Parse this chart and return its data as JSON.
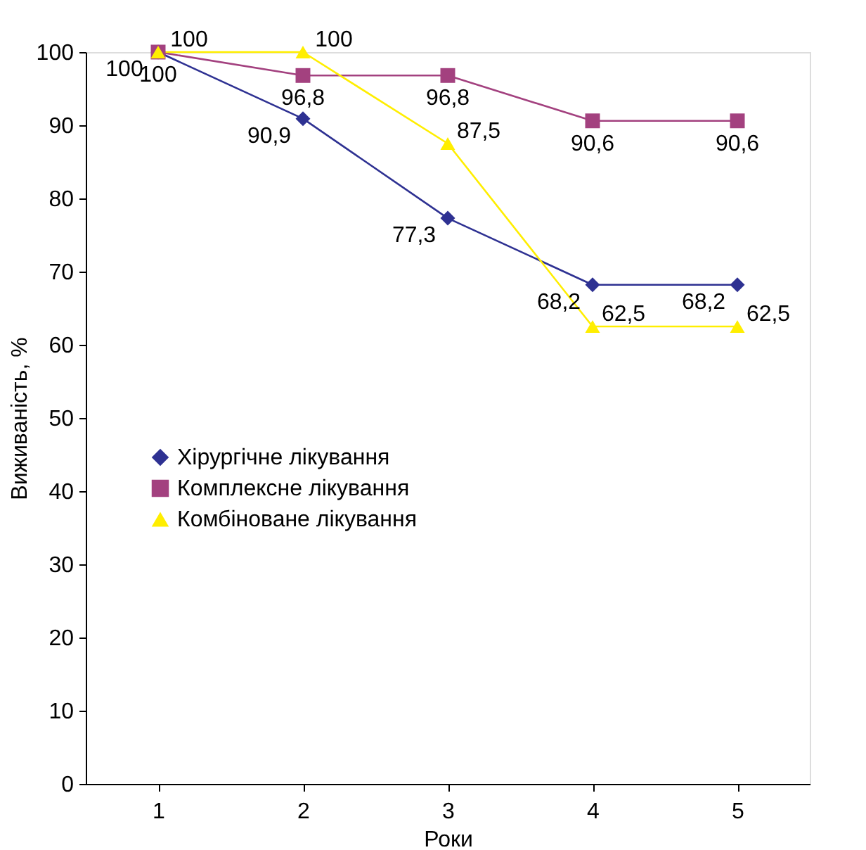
{
  "chart_data": {
    "type": "line",
    "xlabel": "Роки",
    "ylabel": "Виживаність, %",
    "categories": [
      "1",
      "2",
      "3",
      "4",
      "5"
    ],
    "ylim": [
      0,
      100
    ],
    "yticks": [
      0,
      10,
      20,
      30,
      40,
      50,
      60,
      70,
      80,
      90,
      100
    ],
    "grid": false,
    "legend": "left",
    "line_style": "solid",
    "series": [
      {
        "name": "Хірургічне лікування",
        "color": "#2e3192",
        "marker": "diamond",
        "values": [
          100,
          90.9,
          77.3,
          68.2,
          68.2
        ],
        "value_labels": [
          "100",
          "90,9",
          "77,3",
          "68,2",
          "68,2"
        ]
      },
      {
        "name": "Комплексне лікування",
        "color": "#a3417f",
        "marker": "square",
        "values": [
          100,
          96.8,
          96.8,
          90.6,
          90.6
        ],
        "value_labels": [
          "100",
          "96,8",
          "96,8",
          "90,6",
          "90,6"
        ]
      },
      {
        "name": "Комбіноване лікування",
        "color": "#ffee00",
        "marker": "triangle",
        "values": [
          100,
          100,
          87.5,
          62.5,
          62.5
        ],
        "value_labels": [
          "100",
          "100",
          "87,5",
          "62,5",
          "62,5"
        ]
      }
    ]
  }
}
